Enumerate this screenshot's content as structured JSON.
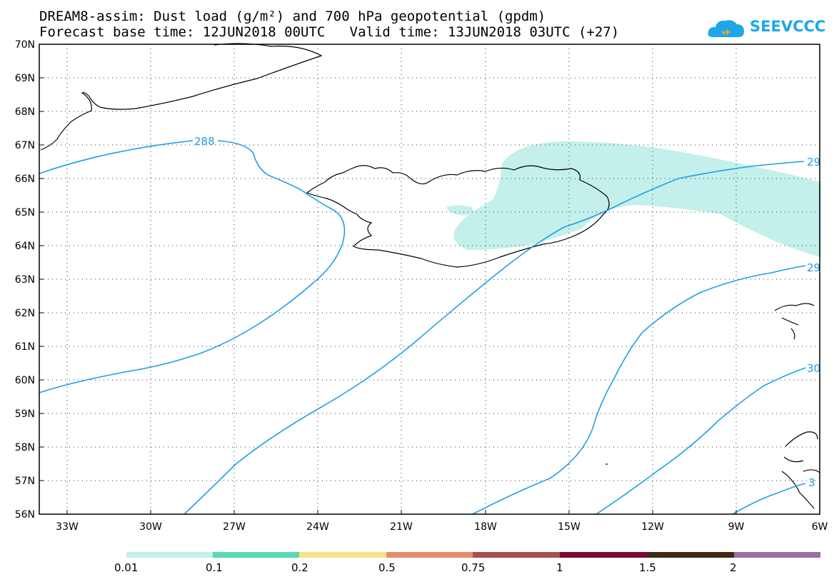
{
  "header": {
    "title_line1": "DREAM8-assim: Dust load (g/m²) and 700 hPa geopotential (gpdm)",
    "title_line2": "Forecast base time: 12JUN2018 00UTC   Valid time: 13JUN2018 03UTC (+27)"
  },
  "logo": {
    "text": "SEEVCCC",
    "icon": "cloud-icon"
  },
  "map": {
    "lat_labels": [
      "70N",
      "69N",
      "68N",
      "67N",
      "66N",
      "65N",
      "64N",
      "63N",
      "62N",
      "61N",
      "60N",
      "59N",
      "58N",
      "57N",
      "56N"
    ],
    "lon_labels": [
      "33W",
      "30W",
      "27W",
      "24W",
      "21W",
      "18W",
      "15W",
      "12W",
      "9W",
      "6W"
    ],
    "contour_labels": [
      "288",
      "29",
      "29",
      "30",
      "3"
    ],
    "contour_color": "#1ea0e6",
    "dust_color": "#c3f0ea",
    "coast_color": "#000000"
  },
  "colorbar": {
    "colors": [
      "#c3f0ea",
      "#5ad9b0",
      "#f5e38a",
      "#e88c6e",
      "#a84e4e",
      "#7d0a2e",
      "#3d2b16",
      "#9b6fa3"
    ],
    "labels": [
      "0.01",
      "0.1",
      "0.2",
      "0.5",
      "0.75",
      "1",
      "1.5",
      "2"
    ]
  }
}
